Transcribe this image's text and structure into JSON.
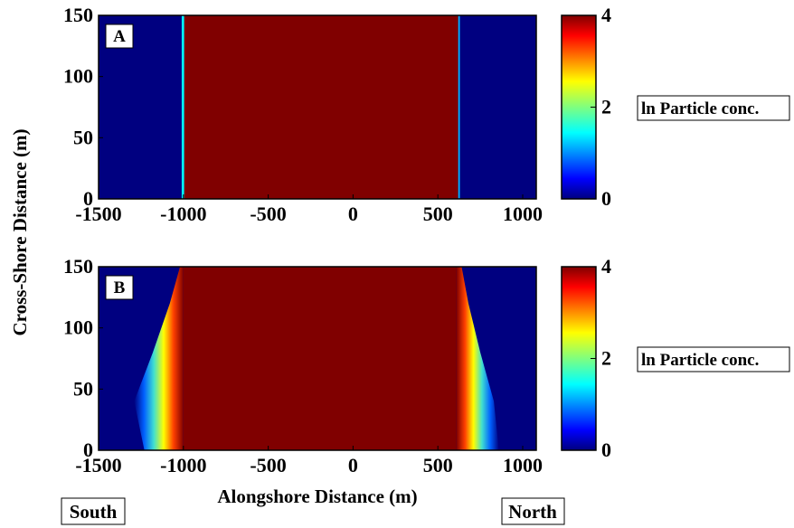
{
  "chart_data": [
    {
      "panel": "A",
      "type": "heatmap",
      "xlim": [
        -1500,
        1080
      ],
      "ylim": [
        0,
        150
      ],
      "xticks": [
        -1500,
        -1000,
        -500,
        0,
        500,
        1000
      ],
      "yticks": [
        0,
        50,
        100,
        150
      ],
      "regions": [
        {
          "x_from": -1500,
          "x_to": -1010,
          "value": 0
        },
        {
          "x_from": -1010,
          "x_to": -995,
          "value": 1.5
        },
        {
          "x_from": -995,
          "x_to": 620,
          "value": 4
        },
        {
          "x_from": 620,
          "x_to": 630,
          "value": 1.2
        },
        {
          "x_from": 630,
          "x_to": 1080,
          "value": 0
        }
      ],
      "colorbar": {
        "min": 0,
        "max": 4,
        "ticks": [
          0,
          2,
          4
        ],
        "label": "ln Particle conc."
      }
    },
    {
      "panel": "B",
      "type": "heatmap",
      "xlim": [
        -1500,
        1080
      ],
      "ylim": [
        0,
        150
      ],
      "xticks": [
        -1500,
        -1000,
        -500,
        0,
        500,
        1000
      ],
      "yticks": [
        0,
        50,
        100,
        150
      ],
      "plume_edges": [
        {
          "y": 0,
          "south_x": -1230,
          "north_x": 860
        },
        {
          "y": 40,
          "south_x": -1290,
          "north_x": 830
        },
        {
          "y": 80,
          "south_x": -1180,
          "north_x": 750
        },
        {
          "y": 120,
          "south_x": -1080,
          "north_x": 680
        },
        {
          "y": 150,
          "south_x": -1020,
          "north_x": 640
        }
      ],
      "core": {
        "x_from": -1000,
        "x_to": 610,
        "value": 4
      },
      "colorbar": {
        "min": 0,
        "max": 4,
        "ticks": [
          0,
          2,
          4
        ],
        "label": "ln Particle conc."
      }
    }
  ],
  "ylabel": "Cross-Shore Distance (m)",
  "xlabel": "Alongshore Distance (m)",
  "south_label": "South",
  "north_label": "North",
  "colors": {
    "low": "#00007f",
    "high": "#7f0000"
  }
}
